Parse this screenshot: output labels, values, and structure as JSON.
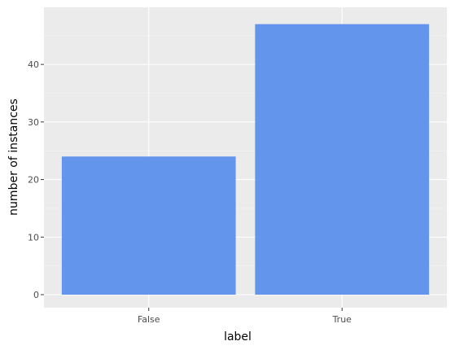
{
  "chart_data": {
    "type": "bar",
    "categories": [
      "False",
      "True"
    ],
    "values": [
      24,
      47
    ],
    "xlabel": "label",
    "ylabel": "number of instances",
    "ylim": [
      0,
      49.35
    ],
    "yticks": [
      0,
      10,
      20,
      30,
      40
    ],
    "grid": true,
    "legend": "none",
    "colors": {
      "bar": "#6495ED",
      "panel_background": "#EBEBEB",
      "grid_major": "#FFFFFF",
      "grid_minor": "#F5F5F5",
      "tick_text": "#4D4D4D",
      "title_text": "#000000"
    }
  }
}
